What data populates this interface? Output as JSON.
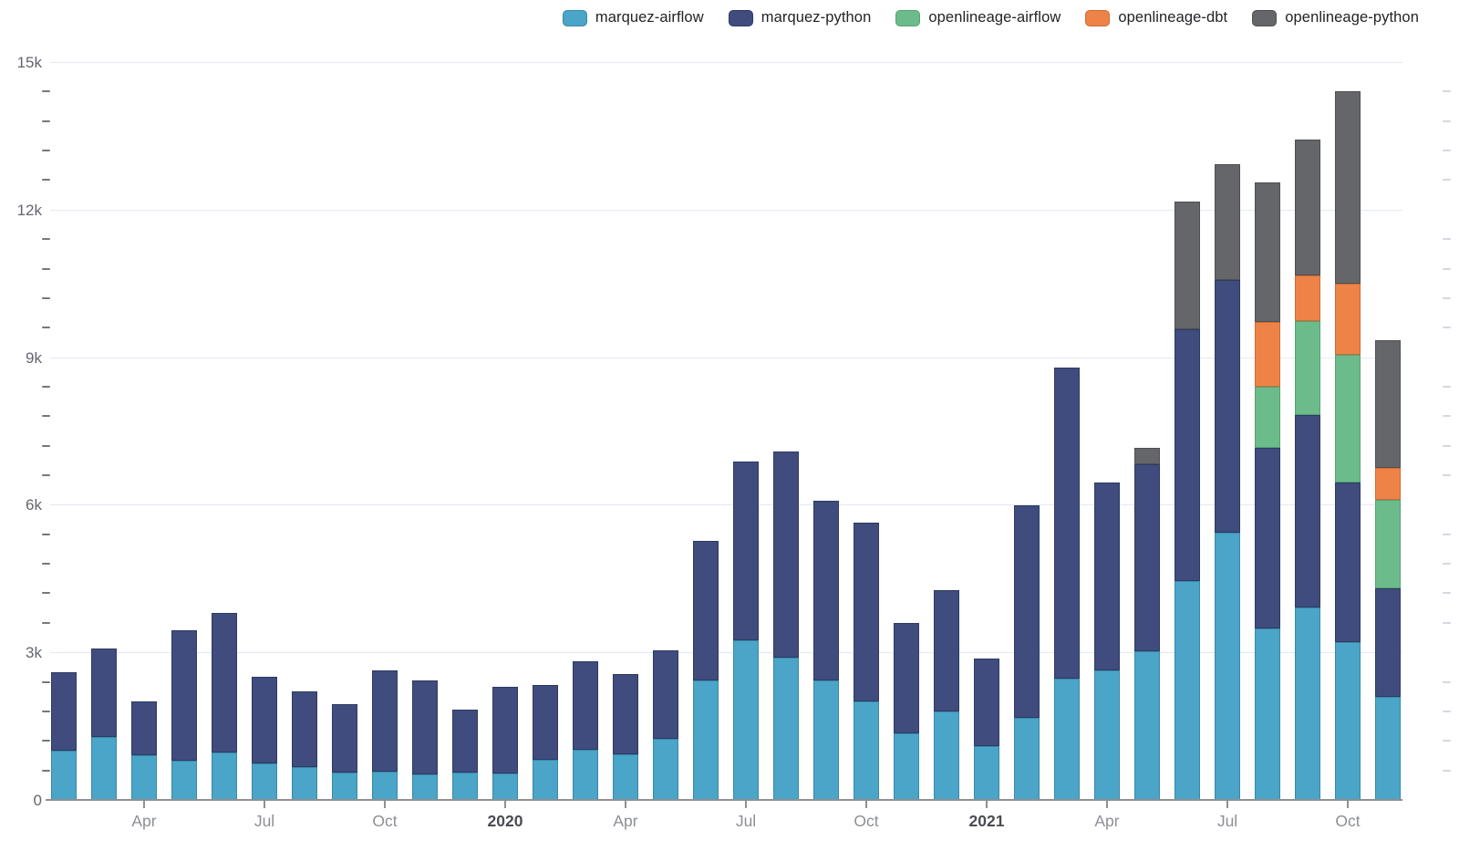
{
  "legend": {
    "items": [
      {
        "label": "marquez-airflow",
        "color": "#4aa5c8",
        "border": "#3a88aa"
      },
      {
        "label": "marquez-python",
        "color": "#3f4c7d",
        "border": "#2e3a63"
      },
      {
        "label": "openlineage-airflow",
        "color": "#6cbc8b",
        "border": "#55a273"
      },
      {
        "label": "openlineage-dbt",
        "color": "#ee8348",
        "border": "#d06a33"
      },
      {
        "label": "openlineage-python",
        "color": "#646669",
        "border": "#4e4f53"
      }
    ]
  },
  "y_axis": {
    "major_labels": [
      "0",
      "3k",
      "6k",
      "9k",
      "12k",
      "15k"
    ],
    "major_step": 3000,
    "minor_step": 600,
    "max": 15000
  },
  "x_axis": {
    "tick_labels": [
      {
        "index": 2,
        "label": "Apr",
        "emphasis": false
      },
      {
        "index": 5,
        "label": "Jul",
        "emphasis": false
      },
      {
        "index": 8,
        "label": "Oct",
        "emphasis": false
      },
      {
        "index": 11,
        "label": "2020",
        "emphasis": true
      },
      {
        "index": 14,
        "label": "Apr",
        "emphasis": false
      },
      {
        "index": 17,
        "label": "Jul",
        "emphasis": false
      },
      {
        "index": 20,
        "label": "Oct",
        "emphasis": false
      },
      {
        "index": 23,
        "label": "2021",
        "emphasis": true
      },
      {
        "index": 26,
        "label": "Apr",
        "emphasis": false
      },
      {
        "index": 29,
        "label": "Jul",
        "emphasis": false
      },
      {
        "index": 32,
        "label": "Oct",
        "emphasis": false
      }
    ]
  },
  "chart_data": {
    "type": "bar",
    "stacked": true,
    "title": "",
    "xlabel": "",
    "ylabel": "",
    "ylim": [
      0,
      15000
    ],
    "grid": true,
    "legend_position": "top",
    "x": [
      "Feb 2019",
      "Mar 2019",
      "Apr 2019",
      "May 2019",
      "Jun 2019",
      "Jul 2019",
      "Aug 2019",
      "Sep 2019",
      "Oct 2019",
      "Nov 2019",
      "Dec 2019",
      "Jan 2020",
      "Feb 2020",
      "Mar 2020",
      "Apr 2020",
      "May 2020",
      "Jun 2020",
      "Jul 2020",
      "Aug 2020",
      "Sep 2020",
      "Oct 2020",
      "Nov 2020",
      "Dec 2020",
      "Jan 2021",
      "Feb 2021",
      "Mar 2021",
      "Apr 2021",
      "May 2021",
      "Jun 2021",
      "Jul 2021",
      "Aug 2021",
      "Sep 2021",
      "Oct 2021",
      "Nov 2021"
    ],
    "series": [
      {
        "name": "marquez-airflow",
        "color": "#4aa5c8",
        "border": "#3a88aa",
        "values": [
          1000,
          1280,
          900,
          800,
          960,
          750,
          670,
          550,
          580,
          520,
          550,
          540,
          810,
          1020,
          920,
          1250,
          2420,
          3240,
          2890,
          2420,
          2010,
          1350,
          1790,
          1090,
          1660,
          2460,
          2630,
          3020,
          4450,
          5440,
          3480,
          3920,
          3200,
          2100
        ]
      },
      {
        "name": "marquez-python",
        "color": "#3f4c7d",
        "border": "#2e3a63",
        "values": [
          1600,
          1800,
          1100,
          2650,
          2850,
          1760,
          1530,
          1400,
          2060,
          1900,
          1290,
          1760,
          1520,
          1790,
          1630,
          1790,
          2850,
          3640,
          4200,
          3660,
          3630,
          2250,
          2480,
          1780,
          4320,
          6330,
          3820,
          3800,
          5120,
          5120,
          3670,
          3910,
          3250,
          2200
        ]
      },
      {
        "name": "openlineage-airflow",
        "color": "#6cbc8b",
        "border": "#55a273",
        "values": [
          0,
          0,
          0,
          0,
          0,
          0,
          0,
          0,
          0,
          0,
          0,
          0,
          0,
          0,
          0,
          0,
          0,
          0,
          0,
          0,
          0,
          0,
          0,
          0,
          0,
          0,
          0,
          0,
          0,
          0,
          1250,
          1900,
          2600,
          1800
        ]
      },
      {
        "name": "openlineage-dbt",
        "color": "#ee8348",
        "border": "#d06a33",
        "values": [
          0,
          0,
          0,
          0,
          0,
          0,
          0,
          0,
          0,
          0,
          0,
          0,
          0,
          0,
          0,
          0,
          0,
          0,
          0,
          0,
          0,
          0,
          0,
          0,
          0,
          0,
          0,
          0,
          0,
          0,
          1310,
          930,
          1450,
          650
        ]
      },
      {
        "name": "openlineage-python",
        "color": "#646669",
        "border": "#4e4f53",
        "values": [
          0,
          0,
          0,
          0,
          0,
          0,
          0,
          0,
          0,
          0,
          0,
          0,
          0,
          0,
          0,
          0,
          0,
          0,
          0,
          0,
          0,
          0,
          0,
          0,
          0,
          0,
          0,
          330,
          2600,
          2360,
          2840,
          2760,
          3900,
          2600
        ]
      }
    ]
  }
}
